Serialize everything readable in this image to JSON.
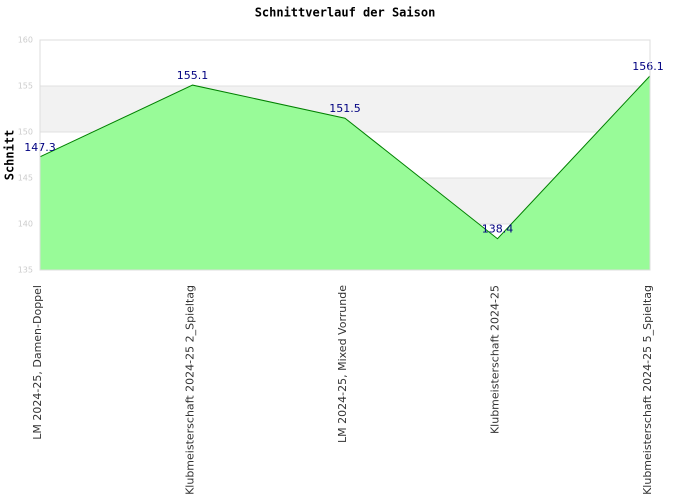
{
  "chart_data": {
    "type": "area",
    "title": "Schnittverlauf der Saison",
    "y_label": "Schnitt",
    "categories": [
      "LM 2024-25, Damen-Doppel",
      "Klubmeisterschaft 2024-25   2_Spieltag",
      "LM 2024-25, Mixed Vorrunde",
      "Klubmeisterschaft 2024-25",
      "Klubmeisterschaft 2024-25   5_Spieltag"
    ],
    "series": [
      {
        "name": "Schnitt",
        "color": "#008000",
        "fill": "#98fb98",
        "values": [
          147.3,
          155.1,
          151.5,
          138.4,
          156.1
        ]
      }
    ],
    "ylim": [
      135,
      160
    ],
    "yticks": [
      135,
      140,
      145,
      150,
      155,
      160
    ],
    "grid": true
  }
}
